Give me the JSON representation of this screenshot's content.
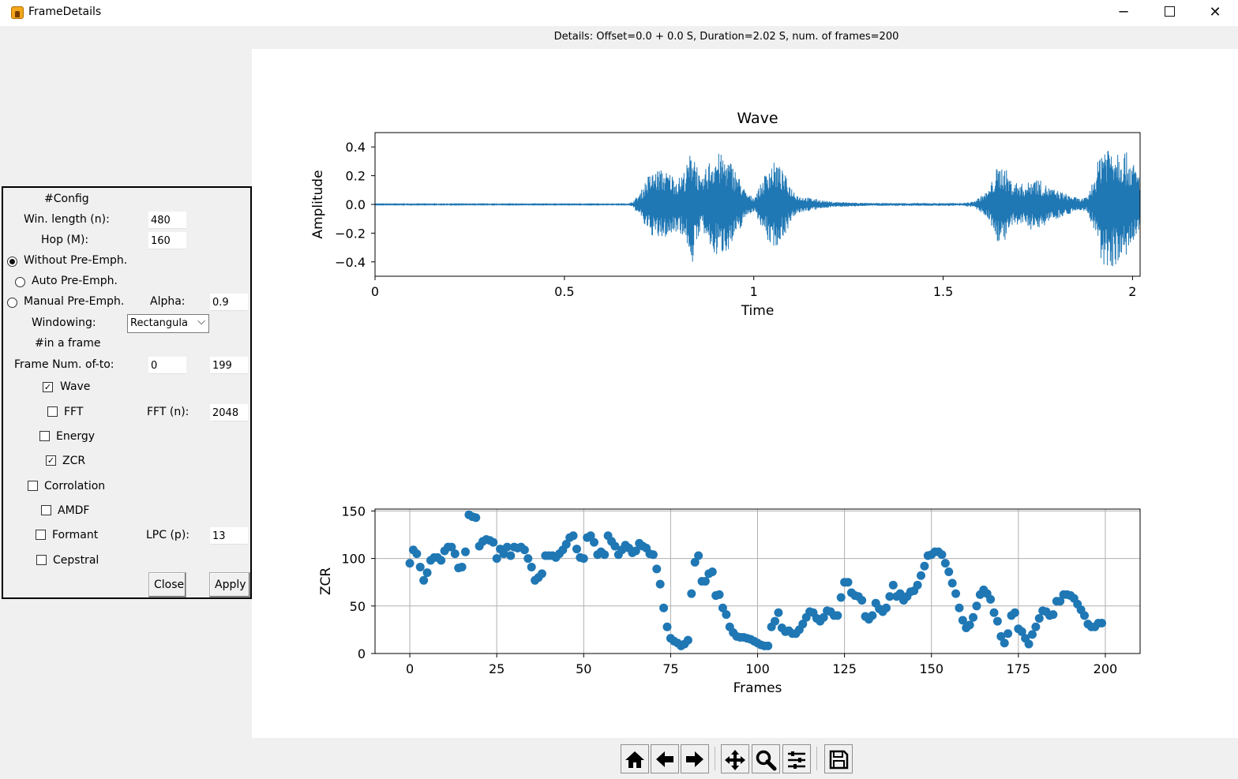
{
  "window": {
    "title": "FrameDetails",
    "icon": "app-icon",
    "minimize": "─",
    "close": "✕"
  },
  "details": "Details: Offset=0.0 + 0.0 S, Duration=2.02 S, num. of frames=200",
  "config": {
    "header": "#Config",
    "win_length_label": "Win. length (n):",
    "win_length_value": "480",
    "hop_label": "Hop (M):",
    "hop_value": "160",
    "radio_without": "Without Pre-Emph.",
    "radio_auto": "Auto Pre-Emph.",
    "radio_manual": "Manual Pre-Emph.",
    "selected_radio": "Without Pre-Emph.",
    "alpha_label": "Alpha:",
    "alpha_value": "0.9",
    "windowing_label": "Windowing:",
    "windowing_value": "Rectangula",
    "in_frame_header": "#in a frame",
    "frame_num_label": "Frame Num. of-to:",
    "frame_from": "0",
    "frame_to": "199",
    "wave_label": "Wave",
    "fft_label": "FFT",
    "fft_n_label": "FFT (n):",
    "fft_n_value": "2048",
    "energy_label": "Energy",
    "zcr_label": "ZCR",
    "corrolation_label": "Corrolation",
    "amdf_label": "AMDF",
    "formant_label": "Formant",
    "lpc_label": "LPC (p):",
    "lpc_value": "13",
    "cepstral_label": "Cepstral",
    "checked": {
      "wave": true,
      "fft": false,
      "energy": false,
      "zcr": true,
      "corrolation": false,
      "amdf": false,
      "formant": false,
      "cepstral": false
    },
    "close_button": "Close",
    "apply_button": "Apply"
  },
  "colors": {
    "series": "#1f77b4"
  },
  "toolbar": [
    "home-icon",
    "back-arrow-icon",
    "forward-arrow-icon",
    "pan-move-icon",
    "zoom-magnifier-icon",
    "subplots-config-icon",
    "save-icon"
  ],
  "chart_data": [
    {
      "type": "line",
      "title": "Wave",
      "xlabel": "Time",
      "ylabel": "Amplitude",
      "xlim": [
        0,
        2.02
      ],
      "ylim": [
        -0.5,
        0.5
      ],
      "xticks": [
        "0",
        "0.5",
        "1",
        "1.5",
        "2"
      ],
      "yticks": [
        "0.4",
        "0.2",
        "0.0",
        "−0.2",
        "−0.4"
      ],
      "grid": false,
      "envelope": {
        "t": [
          0,
          0.67,
          0.68,
          0.7,
          0.72,
          0.75,
          0.78,
          0.8,
          0.82,
          0.84,
          0.86,
          0.88,
          0.9,
          0.92,
          0.94,
          0.96,
          0.98,
          1.0,
          1.02,
          1.04,
          1.06,
          1.08,
          1.1,
          1.12,
          1.14,
          1.16,
          1.18,
          1.2,
          1.25,
          1.3,
          1.35,
          1.4,
          1.45,
          1.5,
          1.55,
          1.58,
          1.6,
          1.62,
          1.64,
          1.66,
          1.68,
          1.7,
          1.72,
          1.74,
          1.76,
          1.78,
          1.8,
          1.82,
          1.84,
          1.86,
          1.88,
          1.9,
          1.92,
          1.94,
          1.96,
          1.98,
          2.0,
          2.02
        ],
        "a": [
          0.003,
          0.003,
          0.02,
          0.08,
          0.2,
          0.25,
          0.22,
          0.18,
          0.25,
          0.43,
          0.15,
          0.3,
          0.37,
          0.34,
          0.3,
          0.2,
          0.08,
          0.05,
          0.15,
          0.28,
          0.3,
          0.22,
          0.12,
          0.06,
          0.05,
          0.04,
          0.03,
          0.02,
          0.015,
          0.01,
          0.01,
          0.01,
          0.01,
          0.01,
          0.01,
          0.02,
          0.06,
          0.1,
          0.25,
          0.28,
          0.17,
          0.15,
          0.14,
          0.2,
          0.16,
          0.12,
          0.1,
          0.08,
          0.06,
          0.04,
          0.05,
          0.2,
          0.44,
          0.44,
          0.42,
          0.38,
          0.3,
          0.2
        ]
      }
    },
    {
      "type": "scatter",
      "title": "",
      "xlabel": "Frames",
      "ylabel": "ZCR",
      "xlim": [
        -10,
        210
      ],
      "ylim": [
        0,
        152
      ],
      "xticks": [
        0,
        25,
        50,
        75,
        100,
        125,
        150,
        175,
        200
      ],
      "yticks": [
        0,
        50,
        100,
        150
      ],
      "grid": true,
      "y": [
        95,
        109,
        105,
        91,
        77,
        85,
        98,
        101,
        101,
        98,
        108,
        112,
        112,
        105,
        90,
        91,
        107,
        146,
        144,
        143,
        113,
        118,
        120,
        119,
        117,
        100,
        110,
        105,
        112,
        103,
        112,
        111,
        112,
        109,
        100,
        91,
        77,
        80,
        84,
        103,
        103,
        103,
        101,
        105,
        109,
        115,
        122,
        124,
        110,
        101,
        100,
        122,
        124,
        117,
        104,
        107,
        104,
        124,
        118,
        113,
        104,
        109,
        114,
        111,
        106,
        108,
        116,
        113,
        111,
        105,
        104,
        89,
        73,
        48,
        28,
        16,
        13,
        11,
        8,
        10,
        14,
        63,
        96,
        103,
        76,
        76,
        84,
        86,
        61,
        62,
        48,
        41,
        28,
        22,
        18,
        17,
        17,
        16,
        15,
        13,
        11,
        9,
        8,
        8,
        28,
        34,
        43,
        27,
        23,
        24,
        21,
        21,
        25,
        31,
        38,
        44,
        43,
        37,
        34,
        38,
        45,
        44,
        40,
        40,
        59,
        75,
        75,
        64,
        61,
        60,
        56,
        39,
        36,
        40,
        53,
        47,
        44,
        48,
        60,
        72,
        60,
        63,
        56,
        60,
        65,
        66,
        72,
        82,
        92,
        103,
        104,
        107,
        107,
        104,
        95,
        86,
        74,
        63,
        48,
        35,
        27,
        30,
        38,
        50,
        62,
        67,
        63,
        57,
        43,
        34,
        18,
        11,
        21,
        40,
        43,
        26,
        23,
        16,
        10,
        20,
        28,
        37,
        45,
        44,
        40,
        41,
        55,
        55,
        62,
        62,
        61,
        58,
        52,
        46,
        40,
        31,
        28,
        28,
        32,
        32
      ]
    }
  ]
}
